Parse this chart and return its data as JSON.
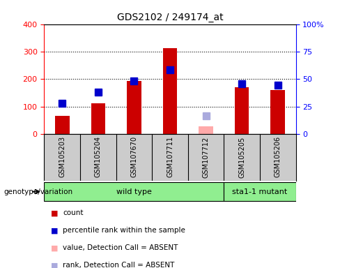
{
  "title": "GDS2102 / 249174_at",
  "samples": [
    "GSM105203",
    "GSM105204",
    "GSM107670",
    "GSM107711",
    "GSM107712",
    "GSM105205",
    "GSM105206"
  ],
  "counts": [
    65,
    113,
    192,
    312,
    null,
    170,
    160
  ],
  "ranks": [
    113,
    152,
    192,
    234,
    null,
    182,
    178
  ],
  "absent_value": [
    null,
    null,
    null,
    null,
    28,
    null,
    null
  ],
  "absent_rank": [
    null,
    null,
    null,
    null,
    65,
    null,
    null
  ],
  "ylim_left": [
    0,
    400
  ],
  "ylim_right": [
    0,
    100
  ],
  "yticks_left": [
    0,
    100,
    200,
    300,
    400
  ],
  "yticks_right": [
    0,
    25,
    50,
    75,
    100
  ],
  "yticklabels_right": [
    "0",
    "25",
    "50",
    "75",
    "100%"
  ],
  "bar_color": "#cc0000",
  "rank_color": "#0000cc",
  "absent_val_color": "#ffaaaa",
  "absent_rank_color": "#aaaadd",
  "wild_type_count": 5,
  "wild_type_label": "wild type",
  "mutant_label": "sta1-1 mutant",
  "genotype_label": "genotype/variation",
  "legend_items": [
    {
      "label": "count",
      "color": "#cc0000"
    },
    {
      "label": "percentile rank within the sample",
      "color": "#0000cc"
    },
    {
      "label": "value, Detection Call = ABSENT",
      "color": "#ffaaaa"
    },
    {
      "label": "rank, Detection Call = ABSENT",
      "color": "#aaaadd"
    }
  ],
  "bg_color": "#cccccc",
  "plot_bg": "#ffffff",
  "bar_width": 0.4,
  "rank_marker_size": 7
}
